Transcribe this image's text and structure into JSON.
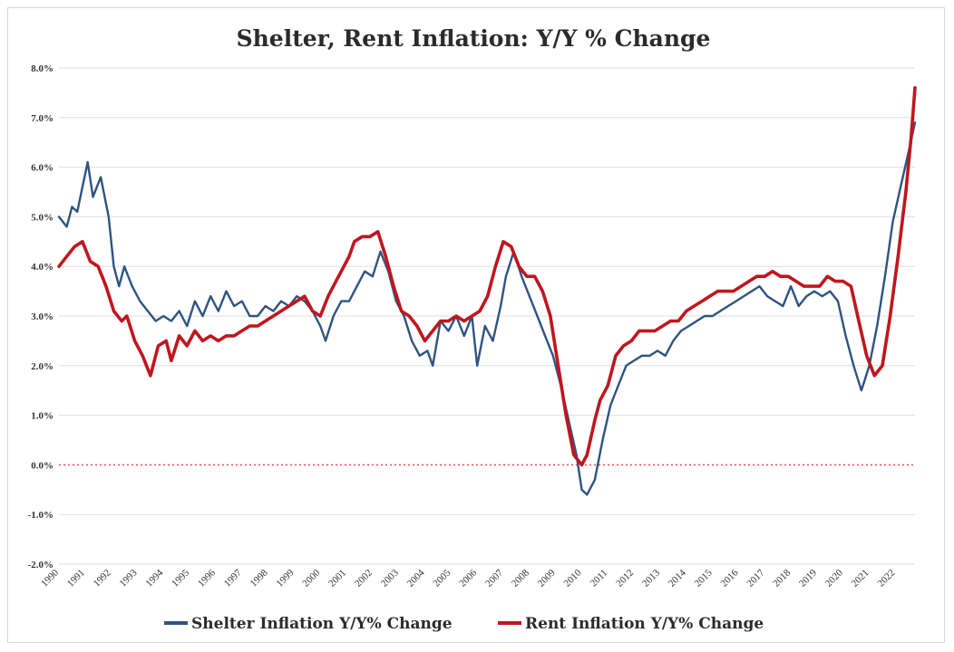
{
  "chart_data": {
    "type": "line",
    "title": "Shelter, Rent Inflation: Y/Y % Change",
    "xlabel": "",
    "ylabel": "",
    "xlim": [
      1990,
      2022.75
    ],
    "ylim": [
      -2.0,
      8.0
    ],
    "y_ticks": [
      8.0,
      7.0,
      6.0,
      5.0,
      4.0,
      3.0,
      2.0,
      1.0,
      0.0,
      -1.0,
      -2.0
    ],
    "y_tick_labels": [
      "8.0%",
      "7.0%",
      "6.0%",
      "5.0%",
      "4.0%",
      "3.0%",
      "2.0%",
      "1.0%",
      "0.0%",
      "-1.0%",
      "-2.0%"
    ],
    "x_tick_labels": [
      "1990",
      "1991",
      "1992",
      "1993",
      "1994",
      "1995",
      "1996",
      "1997",
      "1998",
      "1999",
      "2000",
      "2001",
      "2002",
      "2003",
      "2004",
      "2005",
      "2006",
      "2007",
      "2008",
      "2009",
      "2010",
      "2011",
      "2012",
      "2013",
      "2014",
      "2015",
      "2016",
      "2017",
      "2018",
      "2019",
      "2020",
      "2021",
      "2022"
    ],
    "grid": true,
    "reference_line": {
      "y": 0.0,
      "style": "dotted",
      "color": "#e84a4a"
    },
    "legend_position": "bottom-center",
    "series": [
      {
        "name": "Shelter Inflation Y/Y% Change",
        "color": "#2f5480",
        "x": [
          1990.0,
          1990.3,
          1990.5,
          1990.7,
          1990.9,
          1991.1,
          1991.3,
          1991.6,
          1991.9,
          1992.1,
          1992.3,
          1992.5,
          1992.8,
          1993.1,
          1993.4,
          1993.7,
          1994.0,
          1994.3,
          1994.6,
          1994.9,
          1995.2,
          1995.5,
          1995.8,
          1996.1,
          1996.4,
          1996.7,
          1997.0,
          1997.3,
          1997.6,
          1997.9,
          1998.2,
          1998.5,
          1998.8,
          1999.1,
          1999.4,
          1999.7,
          2000.0,
          2000.2,
          2000.5,
          2000.8,
          2001.1,
          2001.4,
          2001.7,
          2002.0,
          2002.3,
          2002.6,
          2002.9,
          2003.2,
          2003.5,
          2003.8,
          2004.1,
          2004.3,
          2004.6,
          2004.9,
          2005.2,
          2005.5,
          2005.8,
          2006.0,
          2006.3,
          2006.6,
          2006.9,
          2007.1,
          2007.4,
          2007.7,
          2008.0,
          2008.3,
          2008.6,
          2008.9,
          2009.2,
          2009.5,
          2009.8,
          2010.0,
          2010.2,
          2010.5,
          2010.8,
          2011.1,
          2011.4,
          2011.7,
          2012.0,
          2012.3,
          2012.6,
          2012.9,
          2013.2,
          2013.5,
          2013.8,
          2014.1,
          2014.4,
          2014.7,
          2015.0,
          2015.3,
          2015.6,
          2015.9,
          2016.2,
          2016.5,
          2016.8,
          2017.1,
          2017.4,
          2017.7,
          2018.0,
          2018.3,
          2018.6,
          2018.9,
          2019.2,
          2019.5,
          2019.8,
          2020.1,
          2020.4,
          2020.7,
          2021.0,
          2021.3,
          2021.6,
          2021.9,
          2022.2,
          2022.5,
          2022.75
        ],
        "values": [
          5.0,
          4.8,
          5.2,
          5.1,
          5.6,
          6.1,
          5.4,
          5.8,
          5.0,
          4.0,
          3.6,
          4.0,
          3.6,
          3.3,
          3.1,
          2.9,
          3.0,
          2.9,
          3.1,
          2.8,
          3.3,
          3.0,
          3.4,
          3.1,
          3.5,
          3.2,
          3.3,
          3.0,
          3.0,
          3.2,
          3.1,
          3.3,
          3.2,
          3.4,
          3.3,
          3.1,
          2.8,
          2.5,
          3.0,
          3.3,
          3.3,
          3.6,
          3.9,
          3.8,
          4.3,
          3.9,
          3.3,
          3.0,
          2.5,
          2.2,
          2.3,
          2.0,
          2.9,
          2.7,
          3.0,
          2.6,
          3.0,
          2.0,
          2.8,
          2.5,
          3.2,
          3.8,
          4.3,
          3.8,
          3.4,
          3.0,
          2.6,
          2.2,
          1.6,
          0.9,
          0.2,
          -0.5,
          -0.6,
          -0.3,
          0.5,
          1.2,
          1.6,
          2.0,
          2.1,
          2.2,
          2.2,
          2.3,
          2.2,
          2.5,
          2.7,
          2.8,
          2.9,
          3.0,
          3.0,
          3.1,
          3.2,
          3.3,
          3.4,
          3.5,
          3.6,
          3.4,
          3.3,
          3.2,
          3.6,
          3.2,
          3.4,
          3.5,
          3.4,
          3.5,
          3.3,
          2.6,
          2.0,
          1.5,
          2.0,
          2.8,
          3.8,
          4.9,
          5.6,
          6.3,
          6.9
        ]
      },
      {
        "name": "Rent Inflation Y/Y% Change",
        "color": "#c0161f",
        "x": [
          1990.0,
          1990.3,
          1990.6,
          1990.9,
          1991.2,
          1991.5,
          1991.8,
          1992.1,
          1992.4,
          1992.6,
          1992.9,
          1993.2,
          1993.5,
          1993.8,
          1994.1,
          1994.3,
          1994.6,
          1994.9,
          1995.2,
          1995.5,
          1995.8,
          1996.1,
          1996.4,
          1996.7,
          1997.0,
          1997.3,
          1997.6,
          1997.9,
          1998.2,
          1998.5,
          1998.8,
          1999.1,
          1999.4,
          1999.7,
          2000.0,
          2000.3,
          2000.6,
          2000.9,
          2001.1,
          2001.3,
          2001.6,
          2001.9,
          2002.2,
          2002.5,
          2002.8,
          2003.1,
          2003.4,
          2003.7,
          2004.0,
          2004.3,
          2004.6,
          2004.9,
          2005.2,
          2005.5,
          2005.8,
          2006.1,
          2006.4,
          2006.7,
          2007.0,
          2007.3,
          2007.6,
          2007.9,
          2008.2,
          2008.5,
          2008.8,
          2009.1,
          2009.4,
          2009.7,
          2010.0,
          2010.2,
          2010.5,
          2010.7,
          2011.0,
          2011.3,
          2011.6,
          2011.9,
          2012.2,
          2012.5,
          2012.8,
          2013.1,
          2013.4,
          2013.7,
          2014.0,
          2014.3,
          2014.6,
          2014.9,
          2015.2,
          2015.5,
          2015.8,
          2016.1,
          2016.4,
          2016.7,
          2017.0,
          2017.3,
          2017.6,
          2017.9,
          2018.2,
          2018.5,
          2018.8,
          2019.1,
          2019.4,
          2019.7,
          2020.0,
          2020.3,
          2020.6,
          2020.9,
          2021.2,
          2021.5,
          2021.8,
          2022.1,
          2022.4,
          2022.6,
          2022.75
        ],
        "values": [
          4.0,
          4.2,
          4.4,
          4.5,
          4.1,
          4.0,
          3.6,
          3.1,
          2.9,
          3.0,
          2.5,
          2.2,
          1.8,
          2.4,
          2.5,
          2.1,
          2.6,
          2.4,
          2.7,
          2.5,
          2.6,
          2.5,
          2.6,
          2.6,
          2.7,
          2.8,
          2.8,
          2.9,
          3.0,
          3.1,
          3.2,
          3.3,
          3.4,
          3.1,
          3.0,
          3.4,
          3.7,
          4.0,
          4.2,
          4.5,
          4.6,
          4.6,
          4.7,
          4.2,
          3.6,
          3.1,
          3.0,
          2.8,
          2.5,
          2.7,
          2.9,
          2.9,
          3.0,
          2.9,
          3.0,
          3.1,
          3.4,
          4.0,
          4.5,
          4.4,
          4.0,
          3.8,
          3.8,
          3.5,
          3.0,
          2.0,
          1.0,
          0.2,
          0.0,
          0.2,
          0.9,
          1.3,
          1.6,
          2.2,
          2.4,
          2.5,
          2.7,
          2.7,
          2.7,
          2.8,
          2.9,
          2.9,
          3.1,
          3.2,
          3.3,
          3.4,
          3.5,
          3.5,
          3.5,
          3.6,
          3.7,
          3.8,
          3.8,
          3.9,
          3.8,
          3.8,
          3.7,
          3.6,
          3.6,
          3.6,
          3.8,
          3.7,
          3.7,
          3.6,
          2.9,
          2.2,
          1.8,
          2.0,
          3.0,
          4.2,
          5.5,
          6.6,
          7.6
        ]
      }
    ]
  }
}
